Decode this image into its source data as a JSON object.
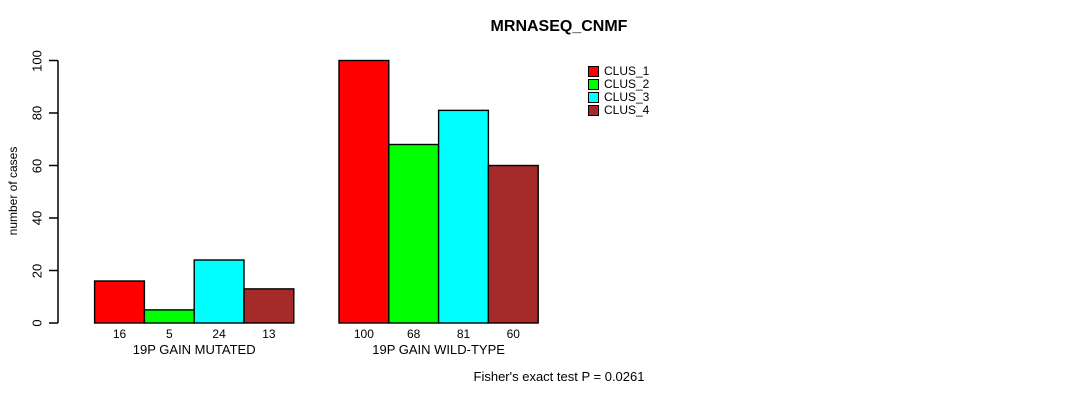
{
  "chart_data": {
    "type": "bar",
    "title": "MRNASEQ_CNMF",
    "xlabel": "",
    "ylabel": "number of cases",
    "ylim": [
      0,
      100
    ],
    "yticks": [
      0,
      20,
      40,
      60,
      80,
      100
    ],
    "grid": false,
    "legend_position": "top-right",
    "categories": [
      "19P GAIN MUTATED",
      "19P GAIN WILD-TYPE"
    ],
    "series": [
      {
        "name": "CLUS_1",
        "color": "#FF0000",
        "values": [
          16,
          100
        ]
      },
      {
        "name": "CLUS_2",
        "color": "#00FF00",
        "values": [
          5,
          68
        ]
      },
      {
        "name": "CLUS_3",
        "color": "#00FFFF",
        "values": [
          24,
          81
        ]
      },
      {
        "name": "CLUS_4",
        "color": "#A52A2A",
        "values": [
          13,
          60
        ]
      }
    ],
    "bar_value_labels": true,
    "footnote": "Fisher's exact test P = 0.0261",
    "axis_color": "#000000",
    "bar_border_color": "#000000"
  }
}
